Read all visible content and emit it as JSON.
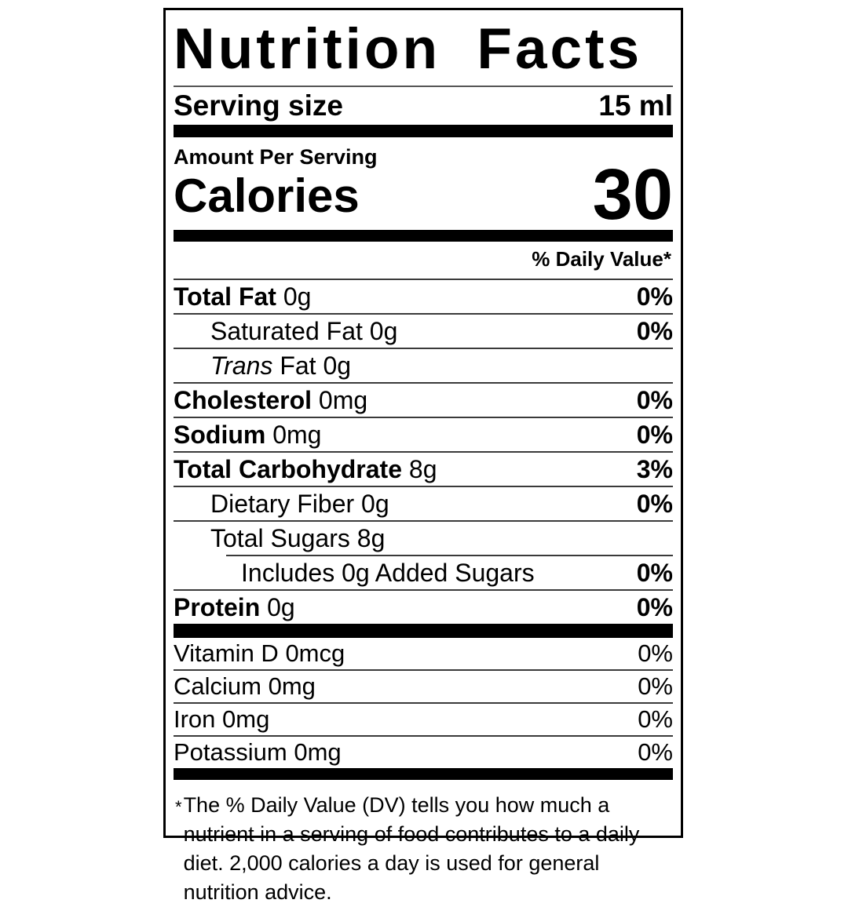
{
  "label": {
    "title": "Nutrition Facts",
    "serving_size": {
      "label": "Serving size",
      "value": "15 ml"
    },
    "amount_per_serving": "Amount Per Serving",
    "calories": {
      "label": "Calories",
      "value": "30"
    },
    "daily_value_header": "% Daily Value*",
    "nutrients": [
      {
        "name": "Total Fat",
        "amount": "0g",
        "dv": "0%"
      },
      {
        "name": "Saturated Fat",
        "amount": "0g",
        "dv": "0%"
      },
      {
        "name": "Trans",
        "amount": "Fat 0g",
        "dv": ""
      },
      {
        "name": "Cholesterol",
        "amount": "0mg",
        "dv": "0%"
      },
      {
        "name": "Sodium",
        "amount": "0mg",
        "dv": "0%"
      },
      {
        "name": "Total Carbohydrate",
        "amount": "8g",
        "dv": "3%"
      },
      {
        "name": "Dietary Fiber",
        "amount": "0g",
        "dv": "0%"
      },
      {
        "name": "Total Sugars",
        "amount": "8g",
        "dv": ""
      },
      {
        "name": "Includes 0g Added Sugars",
        "amount": "",
        "dv": "0%"
      },
      {
        "name": "Protein",
        "amount": "0g",
        "dv": "0%"
      }
    ],
    "micronutrients": [
      {
        "name": "Vitamin D",
        "amount": "0mcg",
        "dv": "0%"
      },
      {
        "name": "Calcium",
        "amount": "0mg",
        "dv": "0%"
      },
      {
        "name": "Iron",
        "amount": "0mg",
        "dv": "0%"
      },
      {
        "name": "Potassium",
        "amount": "0mg",
        "dv": "0%"
      }
    ],
    "footnote_marker": "*",
    "footnote": "The % Daily Value (DV) tells you how much a nutrient in a serving of food contributes to a daily diet. 2,000 calories a day is used for general nutrition advice."
  },
  "colors": {
    "text": "#000000",
    "background": "#ffffff",
    "bar": "#000000"
  }
}
